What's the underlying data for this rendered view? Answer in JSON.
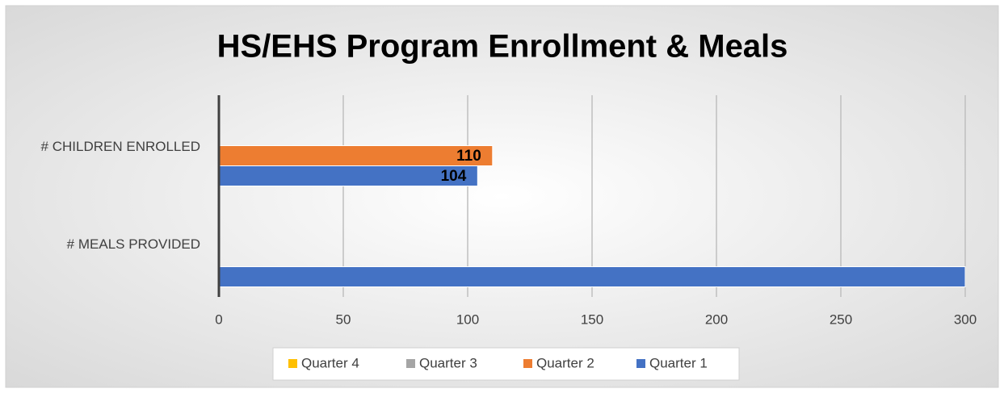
{
  "chart_data": {
    "type": "hbar",
    "title": "HS/EHS Program Enrollment & Meals",
    "categories": [
      "# CHILDREN ENROLLED",
      "# MEALS PROVIDED"
    ],
    "series": [
      {
        "name": "Quarter 4",
        "color": "#ffc000",
        "values": [
          null,
          null
        ]
      },
      {
        "name": "Quarter 3",
        "color": "#a5a5a5",
        "values": [
          null,
          null
        ]
      },
      {
        "name": "Quarter 2",
        "color": "#ed7d31",
        "values": [
          110,
          null
        ],
        "value_labels": [
          "110",
          null
        ]
      },
      {
        "name": "Quarter 1",
        "color": "#4472c4",
        "values": [
          104,
          300
        ],
        "value_labels": [
          "104",
          null
        ]
      }
    ],
    "xlim": [
      0,
      300
    ],
    "xticks": [
      0,
      50,
      100,
      150,
      200,
      250,
      300
    ],
    "grid": true,
    "legend": "bottom"
  }
}
